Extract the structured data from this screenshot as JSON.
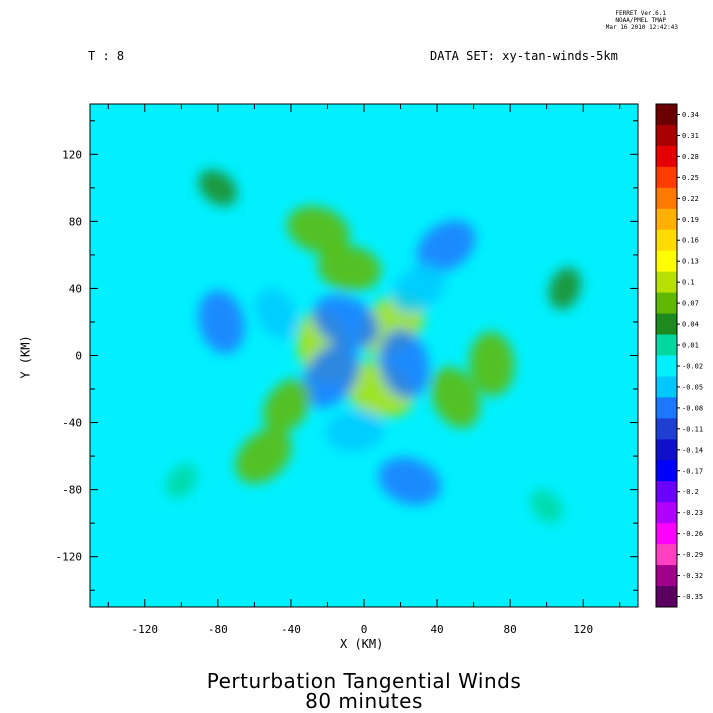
{
  "header": {
    "ferret_line1": "FERRET  Ver.6.1",
    "ferret_line2": "NOAA/PMEL TMAP",
    "ferret_line3": "Mar 16 2010 12:42:43",
    "time_label": "T : 8",
    "dataset_label": "DATA SET: xy-tan-winds-5km"
  },
  "chart_data": {
    "type": "heatmap",
    "title": "Perturbation Tangential Winds",
    "subtitle": "80 minutes",
    "xlabel": "X (KM)",
    "ylabel": "Y (KM)",
    "xlim": [
      -150,
      150
    ],
    "ylim": [
      -150,
      150
    ],
    "x_ticks": [
      -120,
      -80,
      -40,
      0,
      40,
      80,
      120
    ],
    "y_ticks": [
      120,
      80,
      40,
      0,
      -40,
      -80,
      -120
    ],
    "x_tick_labels": [
      "-120",
      "-80",
      "-40",
      "0",
      "40",
      "80",
      "120"
    ],
    "y_tick_labels": [
      "120",
      "80",
      "40",
      "0",
      "-40",
      "-80",
      "-120"
    ],
    "colorbar": {
      "labels": [
        "0.34",
        "0.31",
        "0.28",
        "0.25",
        "0.22",
        "0.19",
        "0.16",
        "0.13",
        "0.1",
        "0.07",
        "0.04",
        "0.01",
        "-0.02",
        "-0.05",
        "-0.08",
        "-0.11",
        "-0.14",
        "-0.17",
        "-0.2",
        "-0.23",
        "-0.26",
        "-0.29",
        "-0.32",
        "-0.35"
      ],
      "colors": [
        "#6b0000",
        "#a80000",
        "#e40000",
        "#ff3c00",
        "#ff7800",
        "#ffb000",
        "#ffdc00",
        "#ffff00",
        "#b8e000",
        "#60b800",
        "#1c8a1c",
        "#00d8a0",
        "#00f0ff",
        "#00c8ff",
        "#1c78ff",
        "#1e40d0",
        "#1010c8",
        "#0000ff",
        "#6a00ff",
        "#b000ff",
        "#ff00ff",
        "#ff40c0",
        "#a0008a",
        "#5a0060"
      ]
    },
    "background_value": -0.01,
    "features": [
      {
        "x": 15,
        "y": 18,
        "value": 0.09
      },
      {
        "x": -22,
        "y": 5,
        "value": 0.09
      },
      {
        "x": 8,
        "y": -20,
        "value": 0.09
      },
      {
        "x": -10,
        "y": 20,
        "value": -0.08
      },
      {
        "x": 22,
        "y": -5,
        "value": -0.08
      },
      {
        "x": -18,
        "y": -12,
        "value": -0.08
      },
      {
        "x": -25,
        "y": 75,
        "value": 0.07
      },
      {
        "x": -8,
        "y": 52,
        "value": 0.07
      },
      {
        "x": 70,
        "y": -5,
        "value": 0.07
      },
      {
        "x": 50,
        "y": -25,
        "value": 0.07
      },
      {
        "x": -55,
        "y": -60,
        "value": 0.07
      },
      {
        "x": -42,
        "y": -30,
        "value": 0.06
      },
      {
        "x": 45,
        "y": 65,
        "value": -0.07
      },
      {
        "x": 30,
        "y": 40,
        "value": -0.06
      },
      {
        "x": -78,
        "y": 20,
        "value": -0.07
      },
      {
        "x": -48,
        "y": 25,
        "value": -0.05
      },
      {
        "x": 25,
        "y": -75,
        "value": -0.07
      },
      {
        "x": -5,
        "y": -45,
        "value": -0.06
      },
      {
        "x": -80,
        "y": 100,
        "value": 0.03
      },
      {
        "x": 110,
        "y": 40,
        "value": 0.03
      },
      {
        "x": 100,
        "y": -90,
        "value": 0.02
      },
      {
        "x": -100,
        "y": -75,
        "value": 0.02
      },
      {
        "x": -110,
        "y": 60,
        "value": -0.03
      },
      {
        "x": 90,
        "y": 95,
        "value": -0.03
      }
    ]
  }
}
